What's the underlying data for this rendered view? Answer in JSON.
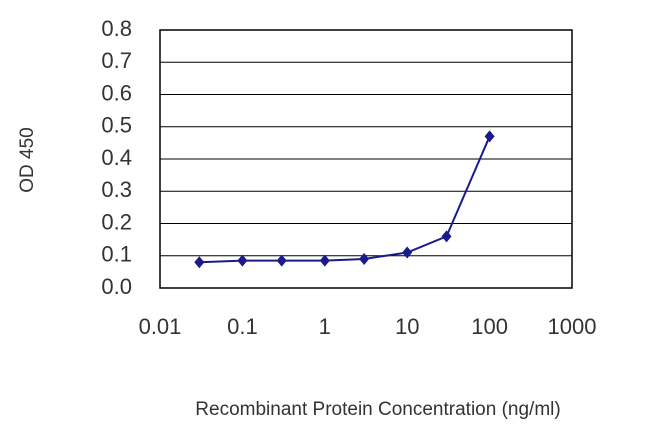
{
  "chart_data": {
    "type": "line",
    "xscale": "log",
    "x_label": "Recombinant Protein Concentration (ng/ml)",
    "y_label": "OD 450",
    "x": [
      0.03,
      0.1,
      0.3,
      1,
      3,
      10,
      30,
      100
    ],
    "series": [
      {
        "color": "#1a1a8c",
        "values": [
          0.08,
          0.085,
          0.085,
          0.085,
          0.09,
          0.11,
          0.16,
          0.47
        ]
      }
    ],
    "xlim": [
      0.01,
      1000
    ],
    "xticks": [
      0.01,
      0.1,
      1,
      10,
      100,
      1000
    ],
    "ylim": [
      0,
      0.8
    ],
    "yticks": [
      {
        "value": 0,
        "label": "0.0"
      },
      0.1,
      0.2,
      0.3,
      0.4,
      0.5,
      0.6,
      0.7,
      0.8
    ],
    "grid": true
  }
}
